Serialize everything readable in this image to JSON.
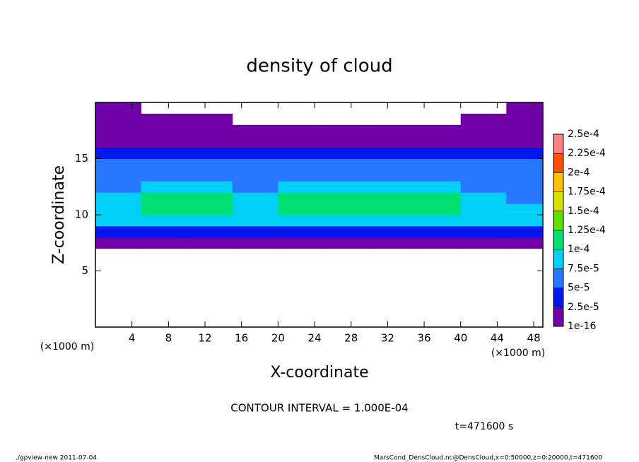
{
  "chart_data": {
    "type": "heatmap",
    "title": "density of cloud",
    "x_label": "X-coordinate",
    "y_label": "Z-coordinate",
    "x_unit": "(×1000 m)",
    "y_unit": "(×1000 m)",
    "xlim": [
      0,
      49
    ],
    "ylim": [
      0,
      20
    ],
    "xticks": [
      4,
      8,
      12,
      16,
      20,
      24,
      28,
      32,
      36,
      40,
      44,
      48
    ],
    "yticks": [
      5,
      10,
      15
    ],
    "x_bins": [
      0,
      5,
      10,
      15,
      20,
      25,
      30,
      35,
      40,
      45,
      49
    ],
    "z_bins": [
      0,
      1,
      2,
      3,
      4,
      5,
      6,
      7,
      8,
      9,
      10,
      11,
      12,
      13,
      14,
      15,
      16,
      17,
      18,
      19,
      20
    ],
    "values": [
      [
        null,
        null,
        null,
        null,
        null,
        null,
        null,
        null,
        null,
        null
      ],
      [
        null,
        null,
        null,
        null,
        null,
        null,
        null,
        null,
        null,
        null
      ],
      [
        null,
        null,
        null,
        null,
        null,
        null,
        null,
        null,
        null,
        null
      ],
      [
        null,
        null,
        null,
        null,
        null,
        null,
        null,
        null,
        null,
        null
      ],
      [
        null,
        null,
        null,
        null,
        null,
        null,
        null,
        null,
        null,
        null
      ],
      [
        null,
        null,
        null,
        null,
        null,
        null,
        null,
        null,
        null,
        null
      ],
      [
        null,
        null,
        null,
        null,
        null,
        null,
        null,
        null,
        null,
        null
      ],
      [
        1e-05,
        1e-05,
        1e-05,
        1e-05,
        1e-05,
        1e-05,
        1e-05,
        1e-05,
        1e-05,
        1e-05
      ],
      [
        4e-05,
        4e-05,
        4e-05,
        4e-05,
        4e-05,
        4e-05,
        4e-05,
        4e-05,
        4e-05,
        4e-05
      ],
      [
        8e-05,
        9e-05,
        9e-05,
        8e-05,
        8e-05,
        8e-05,
        9e-05,
        9e-05,
        8e-05,
        8e-05
      ],
      [
        9e-05,
        0.00011,
        0.00011,
        9e-05,
        0.000105,
        0.00011,
        0.00011,
        0.000105,
        9e-05,
        8e-05
      ],
      [
        8e-05,
        0.00011,
        0.000105,
        8e-05,
        0.000105,
        0.00011,
        0.00011,
        0.000105,
        9e-05,
        7e-05
      ],
      [
        7e-05,
        8e-05,
        9e-05,
        7e-05,
        8e-05,
        8e-05,
        8e-05,
        8e-05,
        7e-05,
        7e-05
      ],
      [
        6e-05,
        6e-05,
        6e-05,
        6e-05,
        6e-05,
        6e-05,
        6e-05,
        6e-05,
        6e-05,
        6e-05
      ],
      [
        6e-05,
        6e-05,
        5.5e-05,
        5.5e-05,
        5e-05,
        5.5e-05,
        6e-05,
        5e-05,
        6e-05,
        6e-05
      ],
      [
        4.5e-05,
        4.5e-05,
        4.5e-05,
        4.5e-05,
        4.5e-05,
        4.5e-05,
        4.5e-05,
        4.5e-05,
        4.5e-05,
        4.5e-05
      ],
      [
        2e-05,
        2e-05,
        2e-05,
        2e-05,
        2e-05,
        2e-05,
        2e-05,
        2e-05,
        2e-05,
        2e-05
      ],
      [
        1e-05,
        1e-05,
        1e-05,
        1e-05,
        1e-05,
        1e-05,
        1e-05,
        1e-05,
        1e-05,
        1e-05
      ],
      [
        1e-05,
        1e-05,
        1e-05,
        null,
        null,
        null,
        null,
        null,
        1e-05,
        1e-05
      ],
      [
        1e-05,
        null,
        null,
        null,
        null,
        null,
        null,
        null,
        null,
        1e-05
      ]
    ],
    "levels": [
      {
        "value": 1e-16,
        "label": "1e-16"
      },
      {
        "value": 2.5e-05,
        "label": "2.5e-5"
      },
      {
        "value": 5e-05,
        "label": "5e-5"
      },
      {
        "value": 7.5e-05,
        "label": "7.5e-5"
      },
      {
        "value": 0.0001,
        "label": "1e-4"
      },
      {
        "value": 0.000125,
        "label": "1.25e-4"
      },
      {
        "value": 0.00015,
        "label": "1.5e-4"
      },
      {
        "value": 0.000175,
        "label": "1.75e-4"
      },
      {
        "value": 0.0002,
        "label": "2e-4"
      },
      {
        "value": 0.000225,
        "label": "2.25e-4"
      },
      {
        "value": 0.00025,
        "label": "2.5e-4"
      }
    ],
    "level_colors": [
      "#7000a8",
      "#0018f0",
      "#2878ff",
      "#00d0f8",
      "#00e070",
      "#60e000",
      "#d8e000",
      "#ffc000",
      "#ff5000",
      "#ff8080"
    ],
    "contour_note": "CONTOUR INTERVAL = 1.000E-04",
    "time_label": "t=471600 s",
    "footer_left": "./gpview-new  2011-07-04",
    "footer_right": "MarsCond_DensCloud.nc@DensCloud,x=0:50000,z=0:20000,t=471600"
  }
}
